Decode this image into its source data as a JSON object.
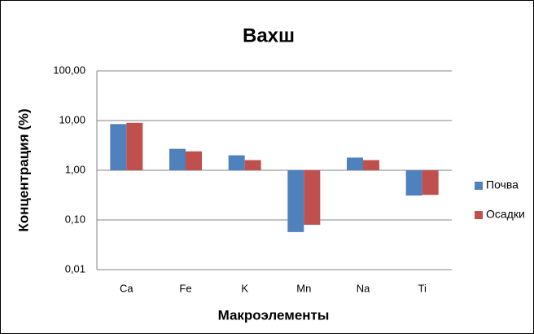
{
  "chart_data": {
    "type": "bar",
    "title": "Вахш",
    "xlabel": "Макроэлементы",
    "ylabel": "Концентрация (%)",
    "categories": [
      "Ca",
      "Fe",
      "K",
      "Mn",
      "Na",
      "Ti"
    ],
    "series": [
      {
        "name": "Почва",
        "color": "#4f81bd",
        "values": [
          8.5,
          2.7,
          2.0,
          0.057,
          1.8,
          0.31
        ]
      },
      {
        "name": "Осадки",
        "color": "#c0504d",
        "values": [
          9.0,
          2.4,
          1.6,
          0.08,
          1.6,
          0.32
        ]
      }
    ],
    "log_scale": true,
    "grid": true,
    "legend": "right",
    "ylim": [
      0.01,
      100
    ],
    "yticks": [
      {
        "value": 0.01,
        "label": "0,01"
      },
      {
        "value": 0.1,
        "label": "0,10"
      },
      {
        "value": 1,
        "label": "1,00"
      },
      {
        "value": 10,
        "label": "10,00"
      },
      {
        "value": 100,
        "label": "100,00"
      }
    ]
  }
}
